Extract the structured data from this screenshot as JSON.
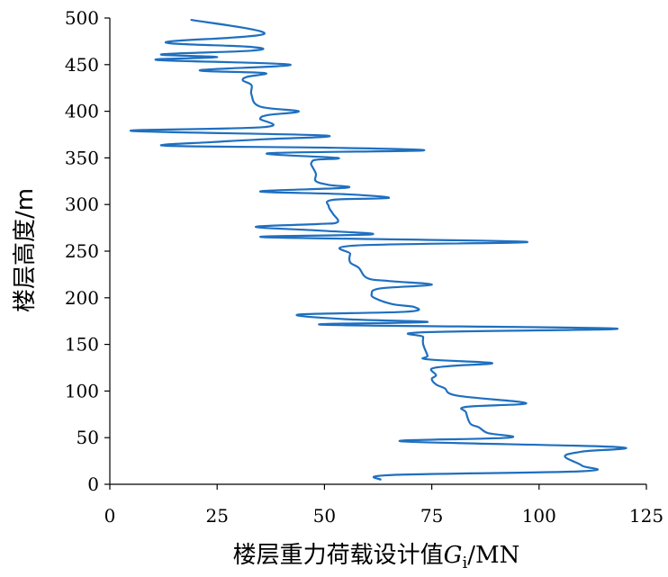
{
  "chart_data": {
    "type": "line",
    "orientation": "data is height (y) versus load (x)",
    "xlabel": "楼层重力荷载设计值",
    "xlabel_var": "G",
    "xlabel_sub": "i",
    "xlabel_unit": "/MN",
    "ylabel": "楼层高度/m",
    "xlim": [
      0,
      125
    ],
    "ylim": [
      0,
      500
    ],
    "xticks": [
      "0",
      "25",
      "50",
      "75",
      "100",
      "125"
    ],
    "yticks": [
      "0",
      "50",
      "100",
      "150",
      "200",
      "250",
      "300",
      "350",
      "400",
      "450",
      "500"
    ],
    "colors": {
      "series": "#1f6fbf",
      "axis": "#000000"
    },
    "series": [
      {
        "name": "Gi",
        "points": [
          [
            63,
            5
          ],
          [
            66,
            10
          ],
          [
            110,
            14
          ],
          [
            110,
            20
          ],
          [
            106,
            30
          ],
          [
            110,
            35
          ],
          [
            118,
            40
          ],
          [
            68,
            46
          ],
          [
            93,
            50
          ],
          [
            88,
            55
          ],
          [
            86,
            61
          ],
          [
            84,
            65
          ],
          [
            83,
            77
          ],
          [
            83,
            83
          ],
          [
            97,
            87
          ],
          [
            81,
            95
          ],
          [
            78,
            103
          ],
          [
            76,
            107
          ],
          [
            75,
            113
          ],
          [
            76,
            117
          ],
          [
            75,
            124
          ],
          [
            80,
            127
          ],
          [
            89,
            130
          ],
          [
            74,
            134
          ],
          [
            74,
            138
          ],
          [
            73,
            150
          ],
          [
            73,
            158
          ],
          [
            73,
            163
          ],
          [
            118,
            167
          ],
          [
            50,
            171
          ],
          [
            74,
            174
          ],
          [
            55,
            177
          ],
          [
            44,
            182
          ],
          [
            69,
            185
          ],
          [
            71,
            190
          ],
          [
            66,
            193
          ],
          [
            62,
            199
          ],
          [
            61,
            204
          ],
          [
            63,
            210
          ],
          [
            75,
            214
          ],
          [
            65,
            218
          ],
          [
            60,
            221
          ],
          [
            58,
            232
          ],
          [
            56,
            238
          ],
          [
            56,
            247
          ],
          [
            57,
            256
          ],
          [
            97,
            260
          ],
          [
            36,
            265
          ],
          [
            61,
            268
          ],
          [
            49,
            272
          ],
          [
            34,
            276
          ],
          [
            48,
            279
          ],
          [
            53,
            281
          ],
          [
            52,
            290
          ],
          [
            51,
            298
          ],
          [
            52,
            305
          ],
          [
            65,
            307
          ],
          [
            55,
            311
          ],
          [
            35,
            314
          ],
          [
            55,
            318
          ],
          [
            51,
            321
          ],
          [
            48,
            325
          ],
          [
            48,
            333
          ],
          [
            47,
            342
          ],
          [
            47,
            345
          ],
          [
            48,
            348
          ],
          [
            53,
            350
          ],
          [
            37,
            355
          ],
          [
            73,
            358
          ],
          [
            50,
            361
          ],
          [
            13,
            363
          ],
          [
            24,
            367
          ],
          [
            36,
            370
          ],
          [
            50,
            374
          ],
          [
            5,
            379
          ],
          [
            36,
            383
          ],
          [
            35,
            392
          ],
          [
            37,
            396
          ],
          [
            44,
            400
          ],
          [
            35,
            405
          ],
          [
            33,
            418
          ],
          [
            33,
            428
          ],
          [
            31,
            433
          ],
          [
            32,
            437
          ],
          [
            36,
            441
          ],
          [
            21,
            444
          ],
          [
            42,
            450
          ],
          [
            11,
            455
          ],
          [
            25,
            458
          ],
          [
            12,
            461
          ],
          [
            33,
            465
          ],
          [
            33,
            469
          ],
          [
            13,
            474
          ],
          [
            36,
            483
          ],
          [
            19,
            498
          ]
        ]
      }
    ]
  }
}
